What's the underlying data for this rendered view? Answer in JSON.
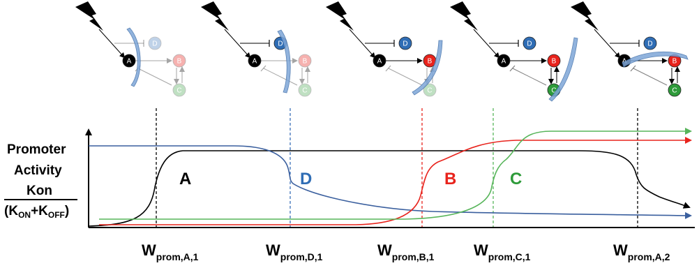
{
  "colors": {
    "A": "#000000",
    "B": "#e8231c",
    "C": "#2e9b3a",
    "D": "#2f6db5",
    "wave": "#7ea6d8",
    "line_green": "#57b55a",
    "line_red": "#e8231c",
    "line_blue": "#3a5f9e",
    "line_black": "#000000"
  },
  "icons": {
    "signal": "lightning-bolt-icon",
    "wave": "activation-wave-icon"
  },
  "y_axis": {
    "line1": "Promoter",
    "line2": "Activity",
    "numerator": "Kon",
    "denominator_K1": "K",
    "denominator_sub1": "ON",
    "denominator_plus": "+K",
    "denominator_sub2": "OFF",
    "denominator_close": ")",
    "denominator_open": "("
  },
  "curves": [
    {
      "label": "A",
      "color_key": "A"
    },
    {
      "label": "D",
      "color_key": "D"
    },
    {
      "label": "B",
      "color_key": "B"
    },
    {
      "label": "C",
      "color_key": "C"
    }
  ],
  "windows": [
    {
      "main": "W",
      "sub": "prom,A,1"
    },
    {
      "main": "W",
      "sub": "prom,D,1"
    },
    {
      "main": "W",
      "sub": "prom,B,1"
    },
    {
      "main": "W",
      "sub": "prom,C,1"
    },
    {
      "main": "W",
      "sub": "prom,A,2"
    }
  ],
  "network_nodes": [
    "A",
    "B",
    "C",
    "D"
  ]
}
